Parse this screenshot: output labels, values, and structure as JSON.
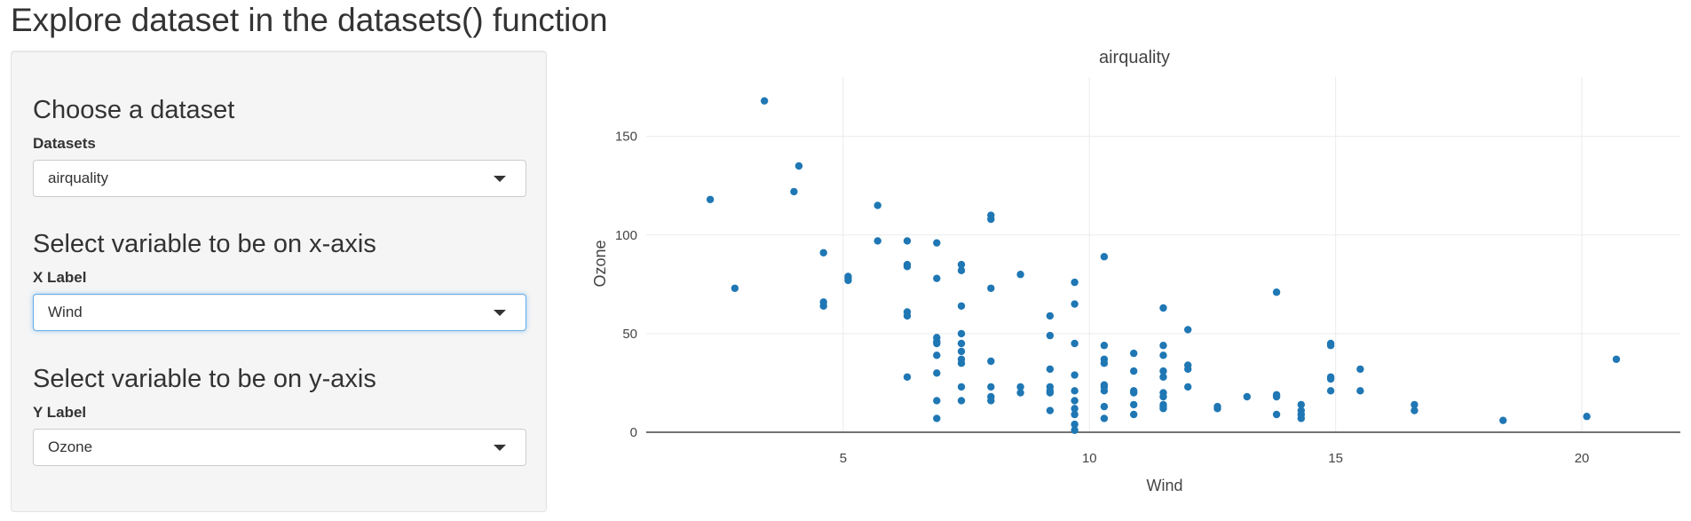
{
  "page": {
    "title": "Explore dataset in the datasets() function"
  },
  "sidebar": {
    "dataset_section": {
      "heading": "Choose a dataset",
      "label": "Datasets",
      "selected": "airquality"
    },
    "x_section": {
      "heading": "Select variable to be on x-axis",
      "label": "X Label",
      "selected": "Wind"
    },
    "y_section": {
      "heading": "Select variable to be on y-axis",
      "label": "Y Label",
      "selected": "Ozone"
    },
    "dropdown_icon": "caret-down-icon"
  },
  "chart_data": {
    "type": "scatter",
    "title": "airquality",
    "xlabel": "Wind",
    "ylabel": "Ozone",
    "xlim": [
      1.0,
      22.0
    ],
    "ylim": [
      0,
      180
    ],
    "xticks": [
      5,
      10,
      15,
      20
    ],
    "yticks": [
      0,
      50,
      100,
      150
    ],
    "grid": true,
    "marker_color": "#1f77b4",
    "points": [
      [
        2.3,
        118
      ],
      [
        2.8,
        73
      ],
      [
        3.4,
        168
      ],
      [
        4.0,
        122
      ],
      [
        4.1,
        135
      ],
      [
        4.6,
        91
      ],
      [
        4.6,
        66
      ],
      [
        4.6,
        64
      ],
      [
        5.1,
        79
      ],
      [
        5.1,
        78
      ],
      [
        5.1,
        77
      ],
      [
        5.7,
        115
      ],
      [
        5.7,
        97
      ],
      [
        6.3,
        97
      ],
      [
        6.3,
        85
      ],
      [
        6.3,
        84
      ],
      [
        6.3,
        61
      ],
      [
        6.3,
        59
      ],
      [
        6.3,
        28
      ],
      [
        6.9,
        96
      ],
      [
        6.9,
        78
      ],
      [
        6.9,
        48
      ],
      [
        6.9,
        46
      ],
      [
        6.9,
        45
      ],
      [
        6.9,
        39
      ],
      [
        6.9,
        30
      ],
      [
        6.9,
        16
      ],
      [
        6.9,
        7
      ],
      [
        7.4,
        85
      ],
      [
        7.4,
        82
      ],
      [
        7.4,
        64
      ],
      [
        7.4,
        50
      ],
      [
        7.4,
        45
      ],
      [
        7.4,
        41
      ],
      [
        7.4,
        37
      ],
      [
        7.4,
        35
      ],
      [
        7.4,
        23
      ],
      [
        7.4,
        16
      ],
      [
        8.0,
        110
      ],
      [
        8.0,
        108
      ],
      [
        8.0,
        73
      ],
      [
        8.0,
        36
      ],
      [
        8.0,
        23
      ],
      [
        8.0,
        18
      ],
      [
        8.0,
        16
      ],
      [
        8.6,
        80
      ],
      [
        8.6,
        23
      ],
      [
        8.6,
        20
      ],
      [
        9.2,
        59
      ],
      [
        9.2,
        49
      ],
      [
        9.2,
        32
      ],
      [
        9.2,
        23
      ],
      [
        9.2,
        21
      ],
      [
        9.2,
        20
      ],
      [
        9.2,
        11
      ],
      [
        9.7,
        76
      ],
      [
        9.7,
        65
      ],
      [
        9.7,
        45
      ],
      [
        9.7,
        29
      ],
      [
        9.7,
        21
      ],
      [
        9.7,
        16
      ],
      [
        9.7,
        12
      ],
      [
        9.7,
        9
      ],
      [
        9.7,
        4
      ],
      [
        9.7,
        1
      ],
      [
        10.3,
        89
      ],
      [
        10.3,
        44
      ],
      [
        10.3,
        37
      ],
      [
        10.3,
        35
      ],
      [
        10.3,
        24
      ],
      [
        10.3,
        23
      ],
      [
        10.3,
        21
      ],
      [
        10.3,
        13
      ],
      [
        10.3,
        7
      ],
      [
        10.9,
        40
      ],
      [
        10.9,
        31
      ],
      [
        10.9,
        21
      ],
      [
        10.9,
        20
      ],
      [
        10.9,
        14
      ],
      [
        10.9,
        9
      ],
      [
        11.5,
        63
      ],
      [
        11.5,
        44
      ],
      [
        11.5,
        39
      ],
      [
        11.5,
        31
      ],
      [
        11.5,
        28
      ],
      [
        11.5,
        20
      ],
      [
        11.5,
        18
      ],
      [
        11.5,
        14
      ],
      [
        11.5,
        13
      ],
      [
        11.5,
        12
      ],
      [
        12.0,
        52
      ],
      [
        12.0,
        34
      ],
      [
        12.0,
        32
      ],
      [
        12.0,
        23
      ],
      [
        12.6,
        13
      ],
      [
        12.6,
        12
      ],
      [
        13.2,
        18
      ],
      [
        13.8,
        71
      ],
      [
        13.8,
        19
      ],
      [
        13.8,
        18
      ],
      [
        13.8,
        9
      ],
      [
        14.3,
        14
      ],
      [
        14.3,
        11
      ],
      [
        14.3,
        9
      ],
      [
        14.3,
        7
      ],
      [
        14.9,
        45
      ],
      [
        14.9,
        44
      ],
      [
        14.9,
        28
      ],
      [
        14.9,
        27
      ],
      [
        14.9,
        21
      ],
      [
        15.5,
        32
      ],
      [
        15.5,
        21
      ],
      [
        16.6,
        14
      ],
      [
        16.6,
        11
      ],
      [
        18.4,
        6
      ],
      [
        20.1,
        8
      ],
      [
        20.7,
        37
      ]
    ]
  }
}
